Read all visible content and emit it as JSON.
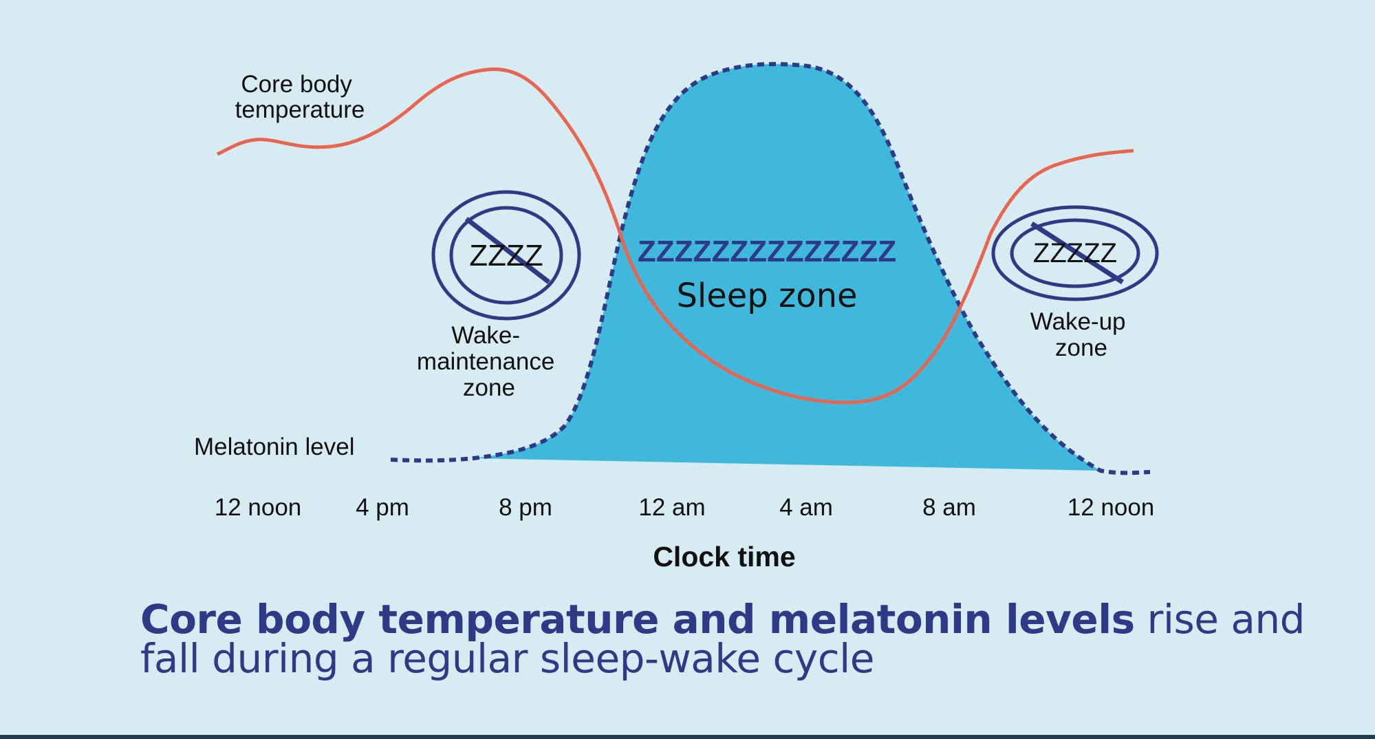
{
  "labels": {
    "temperature_line": "Core body temperature",
    "temperature_line_1": "Core body",
    "temperature_line_2": "temperature",
    "melatonin_line": "Melatonin level",
    "sleep_zzz": "ZZZZZZZZZZZZZZ",
    "sleep_zone": "Sleep zone",
    "wake_maintenance_zzz": "ZZZZ",
    "wake_maintenance_1": "Wake-",
    "wake_maintenance_2": "maintenance",
    "wake_maintenance_3": "zone",
    "wake_up_zzz": "ZZZZZ",
    "wake_up_1": "Wake-up",
    "wake_up_2": "zone"
  },
  "x_axis": {
    "title": "Clock time",
    "ticks": [
      "12 noon",
      "4 pm",
      "8 pm",
      "12 am",
      "4 am",
      "8 am",
      "12 noon"
    ]
  },
  "caption": {
    "bold": "Core body temperature and melatonin levels",
    "rest": " rise and fall during a regular sleep-wake cycle"
  },
  "colors": {
    "background": "#d7ebf2",
    "temperature_line": "#e8654f",
    "melatonin_fill": "#3fb8dc",
    "melatonin_outline": "#2e3a86",
    "zone_symbol": "#2e3a86",
    "caption_text": "#2e3a86",
    "label_text": "#111111"
  },
  "icons": {
    "wake_maintenance": "no-sleep-icon",
    "wake_up": "no-sleep-icon"
  }
}
